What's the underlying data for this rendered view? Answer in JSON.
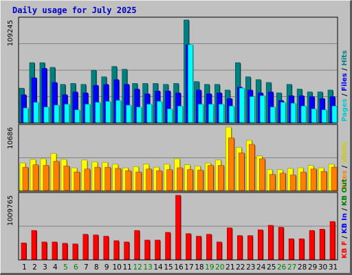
{
  "chart_data": {
    "type": "bar",
    "title": "Daily usage for July 2025",
    "categories": [
      "1",
      "2",
      "3",
      "4",
      "5",
      "6",
      "7",
      "8",
      "9",
      "10",
      "11",
      "12",
      "13",
      "14",
      "15",
      "16",
      "17",
      "18",
      "19",
      "20",
      "21",
      "22",
      "23",
      "24",
      "25",
      "26",
      "27",
      "28",
      "29",
      "30",
      "31"
    ],
    "weekend_days": [
      "5",
      "6",
      "12",
      "13",
      "19",
      "20",
      "26",
      "27"
    ],
    "panels": [
      {
        "name": "hits-files-pages",
        "ymax_label": "109245",
        "ymax": 109245,
        "right_labels": [
          "Pages",
          "Files",
          "Hits"
        ],
        "series": [
          {
            "name": "Hits",
            "color": "#008080",
            "values": [
              37000,
              64000,
              64000,
              59000,
              41000,
              42000,
              41000,
              56000,
              49000,
              60000,
              57000,
              42000,
              42000,
              42000,
              41000,
              42000,
              109245,
              44000,
              41000,
              41000,
              35000,
              64000,
              49000,
              46000,
              43000,
              32000,
              41000,
              36000,
              33000,
              33000,
              35000
            ]
          },
          {
            "name": "Files",
            "color": "#0000ff",
            "values": [
              30000,
              48000,
              58000,
              43000,
              30000,
              33000,
              32000,
              40000,
              41000,
              46000,
              41000,
              36000,
              31000,
              34000,
              34000,
              32000,
              83000,
              35000,
              31000,
              32000,
              26000,
              38000,
              35000,
              32000,
              33000,
              24000,
              29000,
              29000,
              28000,
              26000,
              28000
            ]
          },
          {
            "name": "Pages",
            "color": "#00ffff",
            "values": [
              16000,
              22000,
              17000,
              19000,
              20000,
              14000,
              20000,
              22000,
              23000,
              24000,
              19000,
              17000,
              20000,
              23000,
              15000,
              18000,
              83000,
              20000,
              20000,
              20000,
              18000,
              37000,
              28000,
              29000,
              17000,
              22000,
              21000,
              18000,
              15000,
              14000,
              18000
            ]
          }
        ]
      },
      {
        "name": "visits-sites",
        "ymax_label": "10686",
        "ymax": 10686,
        "right_labels": [
          "Sites",
          "Visits"
        ],
        "series": [
          {
            "name": "Visits",
            "color": "#ffff00",
            "values": [
              4700,
              5300,
              5400,
              6300,
              5300,
              3900,
              5200,
              4900,
              4800,
              4500,
              3900,
              4100,
              4500,
              4000,
              4500,
              5400,
              4400,
              4200,
              4700,
              5200,
              10686,
              7300,
              8500,
              5900,
              3600,
              3600,
              3800,
              3900,
              4300,
              3900,
              4500
            ]
          },
          {
            "name": "Sites",
            "color": "#ff8000",
            "values": [
              4000,
              4400,
              4300,
              5000,
              4200,
              3200,
              3700,
              4000,
              4000,
              3800,
              3400,
              3200,
              3700,
              3400,
              3600,
              3900,
              3600,
              3500,
              4300,
              4300,
              8900,
              6400,
              7800,
              5400,
              2800,
              3000,
              2700,
              3200,
              3700,
              3300,
              4000
            ]
          }
        ]
      },
      {
        "name": "kbytes",
        "ymax_label": "1009765",
        "ymax": 1009765,
        "right_labels": [
          "KB F",
          "KB In",
          "KB Out"
        ],
        "series": [
          {
            "name": "KB F",
            "color": "#ff0000",
            "values": [
              265000,
              460000,
              280000,
              280000,
              260000,
              250000,
              400000,
              390000,
              370000,
              300000,
              280000,
              460000,
              310000,
              310000,
              430000,
              1009765,
              410000,
              370000,
              400000,
              280000,
              500000,
              380000,
              380000,
              470000,
              540000,
              510000,
              330000,
              330000,
              460000,
              480000,
              600000
            ]
          }
        ]
      }
    ]
  },
  "colors": {
    "background": "#c0c0c0",
    "plot_background": "#c0c0c0",
    "grid": "#808080",
    "title": "#0000cc",
    "axis_label": "#000000",
    "weekend_label": "#008000"
  }
}
